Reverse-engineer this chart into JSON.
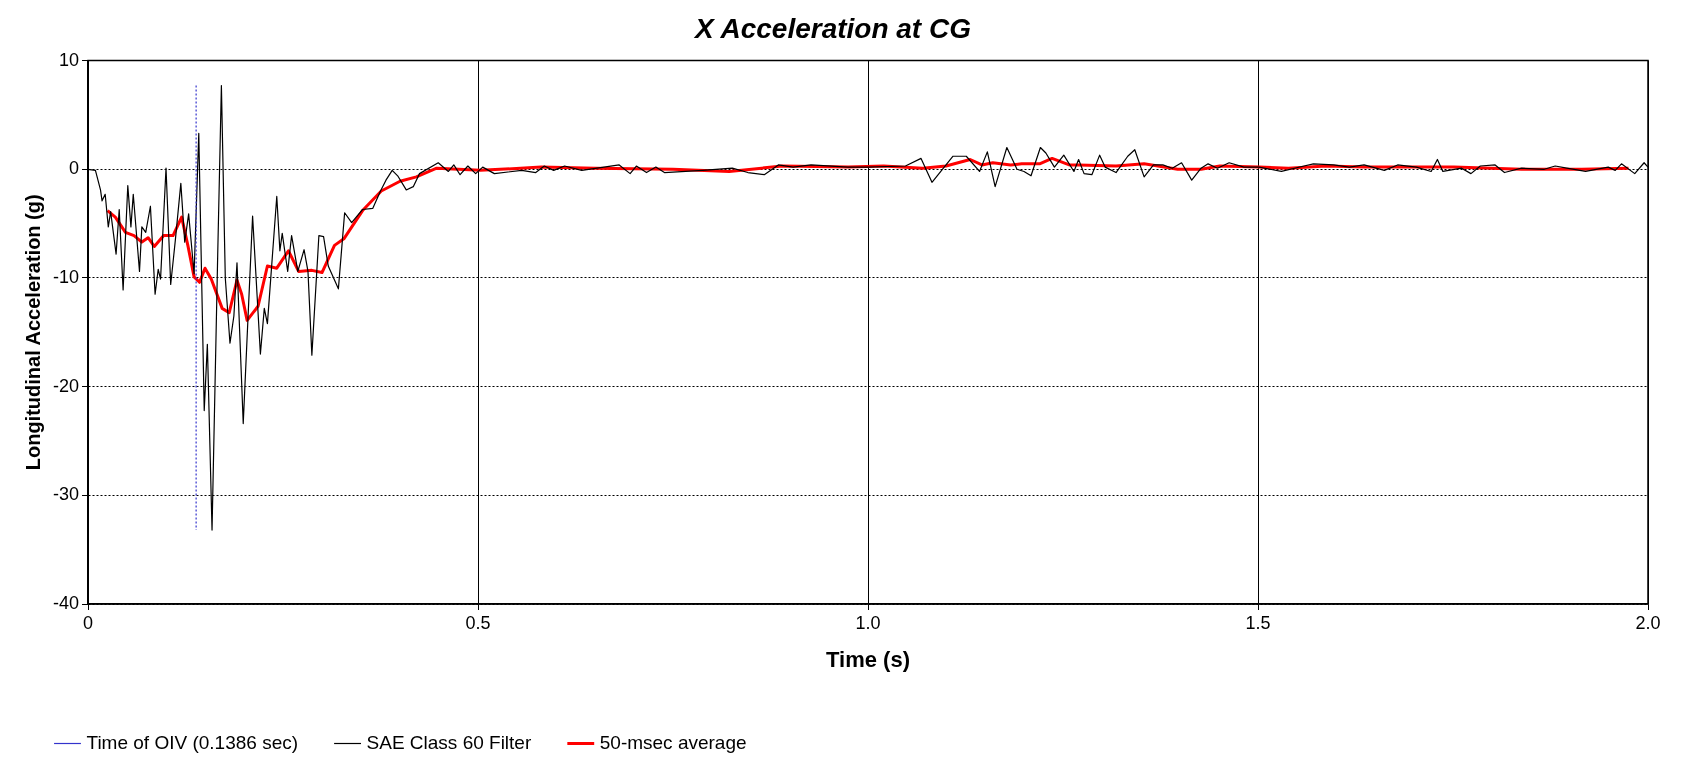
{
  "chart_data": {
    "type": "line",
    "title": "X Acceleration at CG",
    "xlabel": "Time (s)",
    "ylabel": "Longitudinal Acceleration (g)",
    "xlim": [
      0,
      2
    ],
    "xticks": [
      {
        "value": 0,
        "label": "0"
      },
      {
        "value": 0.5,
        "label": "0.5"
      },
      {
        "value": 1,
        "label": "1.0"
      },
      {
        "value": 1.5,
        "label": "1.5"
      },
      {
        "value": 2,
        "label": "2.0"
      }
    ],
    "ylim": [
      -40,
      10
    ],
    "yticks": [
      -40,
      -30,
      -20,
      -10,
      0,
      10
    ],
    "grid": true,
    "legend": "bottom",
    "marker": "none",
    "series": [
      {
        "name": "Time of OIV (0.1386 sec)",
        "color": "#3333cc",
        "line_style": "dotted",
        "x": [
          0.1386,
          0.1386
        ],
        "values": [
          7.7,
          -33.2
        ]
      },
      {
        "name": "SAE Class 60 Filter",
        "color": "#000000",
        "line_style": "solid",
        "x": [
          0,
          0.0095,
          0.016,
          0.018,
          0.022,
          0.026,
          0.029,
          0.036,
          0.04,
          0.045,
          0.051,
          0.055,
          0.058,
          0.066,
          0.069,
          0.074,
          0.08,
          0.086,
          0.09,
          0.093,
          0.1,
          0.106,
          0.112,
          0.119,
          0.124,
          0.129,
          0.136,
          0.142,
          0.149,
          0.153,
          0.159,
          0.166,
          0.171,
          0.176,
          0.182,
          0.187,
          0.191,
          0.199,
          0.211,
          0.221,
          0.226,
          0.23,
          0.242,
          0.246,
          0.249,
          0.256,
          0.261,
          0.269,
          0.277,
          0.282,
          0.287,
          0.296,
          0.302,
          0.308,
          0.321,
          0.329,
          0.338,
          0.352,
          0.365,
          0.375,
          0.382,
          0.39,
          0.397,
          0.408,
          0.417,
          0.425,
          0.449,
          0.462,
          0.469,
          0.477,
          0.487,
          0.497,
          0.506,
          0.521,
          0.556,
          0.574,
          0.585,
          0.597,
          0.611,
          0.633,
          0.681,
          0.695,
          0.703,
          0.716,
          0.728,
          0.739,
          0.788,
          0.826,
          0.846,
          0.867,
          0.885,
          0.904,
          0.927,
          0.974,
          1.0,
          1.048,
          1.068,
          1.082,
          1.109,
          1.126,
          1.143,
          1.153,
          1.163,
          1.178,
          1.191,
          1.2,
          1.209,
          1.221,
          1.228,
          1.239,
          1.251,
          1.264,
          1.27,
          1.277,
          1.287,
          1.297,
          1.304,
          1.318,
          1.333,
          1.342,
          1.354,
          1.366,
          1.378,
          1.39,
          1.402,
          1.415,
          1.427,
          1.436,
          1.448,
          1.463,
          1.482,
          1.501,
          1.53,
          1.559,
          1.571,
          1.597,
          1.617,
          1.636,
          1.662,
          1.679,
          1.703,
          1.722,
          1.73,
          1.737,
          1.761,
          1.773,
          1.785,
          1.804,
          1.816,
          1.838,
          1.867,
          1.881,
          1.896,
          1.92,
          1.949,
          1.958,
          1.966,
          1.983,
          1.995,
          2.0
        ],
        "values": [
          0,
          -0.1,
          -1.9,
          -2.9,
          -2.3,
          -5.3,
          -3.9,
          -7.8,
          -3.7,
          -11.1,
          -1.5,
          -5.3,
          -2.3,
          -9.4,
          -5.3,
          -5.8,
          -3.4,
          -11.5,
          -9.2,
          -10.1,
          0.1,
          -10.6,
          -6.5,
          -1.3,
          -6.7,
          -4.1,
          -9.6,
          3.3,
          -22.2,
          -16.1,
          -33.2,
          -8.8,
          7.7,
          -10,
          -16,
          -13.5,
          -8.6,
          -23.4,
          -4.3,
          -17.0,
          -12.8,
          -14.2,
          -2.5,
          -7.5,
          -5.9,
          -9.4,
          -6.1,
          -9.4,
          -7.4,
          -9.4,
          -17.1,
          -6.1,
          -6.2,
          -8.9,
          -11.0,
          -4.0,
          -4.9,
          -3.7,
          -3.6,
          -2.0,
          -1.0,
          -0.1,
          -0.6,
          -1.9,
          -1.6,
          -0.4,
          0.6,
          -0.2,
          0.4,
          -0.5,
          0.3,
          -0.4,
          0.2,
          -0.4,
          -0.1,
          -0.3,
          0.3,
          -0.1,
          0.3,
          -0.1,
          0.4,
          -0.4,
          0.3,
          -0.3,
          0.2,
          -0.3,
          -0.1,
          0.1,
          -0.3,
          -0.5,
          0.4,
          0.2,
          0.4,
          0.2,
          0.2,
          0.3,
          1.0,
          -1.2,
          1.2,
          1.2,
          -0.2,
          1.6,
          -1.6,
          2.0,
          0,
          -0.2,
          -0.6,
          2.0,
          1.5,
          0.2,
          1.3,
          -0.2,
          0.9,
          -0.4,
          -0.5,
          1.3,
          0.2,
          -0.3,
          1.2,
          1.8,
          -0.7,
          0.4,
          0.4,
          0.1,
          0.6,
          -1.0,
          0.1,
          0.5,
          0.1,
          0.6,
          0.2,
          0.2,
          -0.2,
          0.3,
          0.5,
          0.4,
          0.2,
          0.4,
          -0.1,
          0.4,
          0.2,
          -0.2,
          0.9,
          -0.2,
          0.1,
          -0.4,
          0.3,
          0.4,
          -0.3,
          0.1,
          0,
          0.3,
          0.1,
          -0.2,
          0.2,
          -0.1,
          0.5,
          -0.4,
          0.6,
          0.2
        ]
      },
      {
        "name": "50-msec average",
        "color": "#ff0000",
        "line_style": "solid",
        "x": [
          0.025,
          0.035,
          0.048,
          0.059,
          0.069,
          0.077,
          0.085,
          0.097,
          0.109,
          0.12,
          0.128,
          0.136,
          0.143,
          0.15,
          0.158,
          0.172,
          0.181,
          0.191,
          0.197,
          0.204,
          0.218,
          0.23,
          0.242,
          0.257,
          0.27,
          0.287,
          0.3,
          0.316,
          0.328,
          0.352,
          0.376,
          0.4,
          0.421,
          0.447,
          0.503,
          0.581,
          0.65,
          0.75,
          0.822,
          0.89,
          0.975,
          1.02,
          1.07,
          1.1,
          1.131,
          1.146,
          1.16,
          1.183,
          1.197,
          1.22,
          1.236,
          1.258,
          1.27,
          1.318,
          1.354,
          1.397,
          1.427,
          1.451,
          1.501,
          1.539,
          1.587,
          1.636,
          1.679,
          1.751,
          1.838,
          1.915,
          1.975
        ],
        "values": [
          -3.8,
          -4.4,
          -5.8,
          -6.1,
          -6.7,
          -6.3,
          -7.1,
          -6.1,
          -6.1,
          -4.4,
          -7.0,
          -9.9,
          -10.4,
          -9.1,
          -10.1,
          -12.8,
          -13.2,
          -10.2,
          -11.5,
          -13.9,
          -12.6,
          -8.9,
          -9.1,
          -7.5,
          -9.4,
          -9.3,
          -9.5,
          -7.0,
          -6.4,
          -3.8,
          -2.0,
          -1.1,
          -0.7,
          0.1,
          -0.1,
          0.2,
          0.1,
          0,
          -0.2,
          0.3,
          0.2,
          0.3,
          0.1,
          0.3,
          0.9,
          0.4,
          0.6,
          0.4,
          0.5,
          0.5,
          1.0,
          0.4,
          0.4,
          0.3,
          0.5,
          0,
          0,
          0.3,
          0.2,
          0.1,
          0.3,
          0.2,
          0.2,
          0.2,
          0,
          0,
          0.1
        ]
      }
    ]
  }
}
